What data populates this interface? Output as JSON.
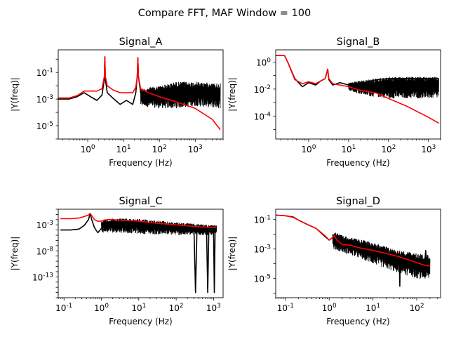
{
  "figure": {
    "suptitle": "Compare FFT, MAF Window = 100",
    "raw_color": "#000000",
    "filtered_color": "#ff0000"
  },
  "chart_data": [
    {
      "type": "line",
      "title": "Signal_A",
      "xlabel": "Frequency (Hz)",
      "ylabel": "|Y(freq)|",
      "xscale": "log",
      "yscale": "log",
      "xlim": [
        0.15,
        6000
      ],
      "ylim": [
        1e-06,
        5
      ],
      "x_ticks": [
        {
          "value": 1,
          "label": "10^0"
        },
        {
          "value": 10,
          "label": "10^1"
        },
        {
          "value": 100,
          "label": "10^2"
        },
        {
          "value": 1000,
          "label": "10^3"
        }
      ],
      "y_ticks": [
        {
          "value": 0.1,
          "label": "10^-1"
        },
        {
          "value": 0.001,
          "label": "10^-3"
        },
        {
          "value": 1e-05,
          "label": "10^-5"
        }
      ],
      "grid": false,
      "series": [
        {
          "role": "raw",
          "color": "#000000",
          "x": [
            0.15,
            0.3,
            0.5,
            0.8,
            1.2,
            1.8,
            2.5,
            2.9,
            3.0,
            3.1,
            3.5,
            5,
            8,
            12,
            18,
            22,
            24,
            25,
            26,
            30,
            50,
            100,
            300,
            1000,
            3000,
            5000
          ],
          "y": [
            0.001,
            0.001,
            0.0015,
            0.003,
            0.0015,
            0.0008,
            0.002,
            0.03,
            1.5,
            0.03,
            0.003,
            0.0012,
            0.0004,
            0.0008,
            0.0004,
            0.003,
            0.05,
            1.3,
            0.05,
            0.003,
            0.001,
            0.005,
            0.008,
            0.006,
            0.007,
            0.005
          ],
          "envelope_top": [
            0.15,
            0.001,
            30,
            0.006,
            100,
            0.01,
            300,
            0.02,
            1000,
            0.02,
            5000,
            0.015
          ],
          "envelope_bottom": [
            30,
            0.0003,
            100,
            0.0002,
            300,
            0.0002,
            1000,
            0.0003,
            5000,
            0.0002
          ]
        },
        {
          "role": "filtered",
          "color": "#ff0000",
          "x": [
            0.15,
            0.3,
            0.5,
            0.8,
            1.2,
            1.8,
            2.5,
            2.9,
            3.0,
            3.1,
            3.5,
            5,
            8,
            12,
            18,
            22,
            24,
            25,
            26,
            30,
            50,
            100,
            300,
            1000,
            3000,
            5000
          ],
          "y": [
            0.0012,
            0.0012,
            0.0018,
            0.004,
            0.004,
            0.004,
            0.006,
            0.05,
            1.4,
            0.05,
            0.01,
            0.005,
            0.003,
            0.003,
            0.003,
            0.008,
            0.05,
            1.3,
            0.05,
            0.006,
            0.003,
            0.0015,
            0.0006,
            0.0002,
            3e-05,
            5e-06
          ]
        }
      ]
    },
    {
      "type": "line",
      "title": "Signal_B",
      "xlabel": "Frequency (Hz)",
      "ylabel": "|Y(freq)|",
      "xscale": "log",
      "yscale": "log",
      "xlim": [
        0.15,
        2000
      ],
      "ylim": [
        2e-06,
        8
      ],
      "x_ticks": [
        {
          "value": 1,
          "label": "10^0"
        },
        {
          "value": 10,
          "label": "10^1"
        },
        {
          "value": 100,
          "label": "10^2"
        },
        {
          "value": 1000,
          "label": "10^3"
        }
      ],
      "y_ticks": [
        {
          "value": 1,
          "label": "10^0"
        },
        {
          "value": 0.01,
          "label": "10^-2"
        },
        {
          "value": 0.0001,
          "label": "10^-4"
        }
      ],
      "grid": false,
      "series": [
        {
          "role": "raw",
          "color": "#000000",
          "x": [
            0.15,
            0.25,
            0.3,
            0.45,
            0.7,
            1.0,
            1.5,
            2.0,
            2.6,
            3.0,
            3.2,
            4,
            6,
            10,
            20,
            50,
            100,
            300,
            1000,
            1800
          ],
          "y": [
            3,
            3,
            1,
            0.06,
            0.015,
            0.03,
            0.02,
            0.04,
            0.06,
            0.3,
            0.05,
            0.02,
            0.03,
            0.02,
            0.025,
            0.05,
            0.06,
            0.06,
            0.06,
            0.06
          ],
          "envelope_top": [
            0.15,
            3,
            10,
            0.03,
            30,
            0.05,
            100,
            0.08,
            300,
            0.08,
            1800,
            0.08
          ],
          "envelope_bottom": [
            10,
            0.008,
            30,
            0.003,
            100,
            0.002,
            300,
            0.002,
            1800,
            0.002
          ]
        },
        {
          "role": "filtered",
          "color": "#ff0000",
          "x": [
            0.15,
            0.25,
            0.3,
            0.45,
            0.7,
            1.0,
            1.5,
            2.0,
            2.6,
            3.0,
            3.2,
            4,
            6,
            10,
            20,
            50,
            100,
            300,
            1000,
            1800
          ],
          "y": [
            3,
            3,
            1,
            0.05,
            0.025,
            0.035,
            0.025,
            0.04,
            0.06,
            0.3,
            0.06,
            0.025,
            0.02,
            0.015,
            0.008,
            0.005,
            0.002,
            0.0005,
            8e-05,
            3e-05
          ]
        }
      ]
    },
    {
      "type": "line",
      "title": "Signal_C",
      "xlabel": "Frequency (Hz)",
      "ylabel": "|Y(freq)|",
      "xscale": "log",
      "yscale": "log",
      "xlim": [
        0.07,
        1800
      ],
      "ylim": [
        1e-17,
        1
      ],
      "x_ticks": [
        {
          "value": 0.1,
          "label": "10^-1"
        },
        {
          "value": 1,
          "label": "10^0"
        },
        {
          "value": 10,
          "label": "10^1"
        },
        {
          "value": 100,
          "label": "10^2"
        },
        {
          "value": 1000,
          "label": "10^3"
        }
      ],
      "y_ticks": [
        {
          "value": 0.001,
          "label": "10^-3"
        },
        {
          "value": 1e-08,
          "label": "10^-8"
        },
        {
          "value": 1e-13,
          "label": "10^-13"
        }
      ],
      "grid": false,
      "series": [
        {
          "role": "raw",
          "color": "#000000",
          "x": [
            0.08,
            0.15,
            0.25,
            0.35,
            0.45,
            0.5,
            0.55,
            0.65,
            0.8,
            1.0,
            1.2,
            1.5,
            2,
            3,
            5,
            10,
            30,
            100,
            300,
            330,
            360,
            390,
            500,
            650,
            700,
            750,
            800,
            1000,
            1050,
            1100,
            1200
          ],
          "y": [
            0.0001,
            0.0001,
            0.00015,
            0.0008,
            0.01,
            0.15,
            0.01,
            0.0003,
            3e-05,
            0.0002,
            0.0001,
            0.0003,
            0.0005,
            0.0008,
            0.001,
            0.002,
            0.001,
            0.0005,
            0.0002,
            1e-16,
            0.0002,
            0.0002,
            0.00015,
            0.00012,
            1e-16,
            0.00012,
            0.0001,
            0.0001,
            1e-16,
            0.0001,
            0.0001
          ],
          "envelope_top": [
            1,
            0.01,
            3,
            0.02,
            10,
            0.015,
            100,
            0.003,
            1200,
            0.0008
          ],
          "envelope_bottom": [
            1,
            3e-05,
            3,
            3e-05,
            10,
            2e-05,
            100,
            1e-05,
            1200,
            1e-05
          ]
        },
        {
          "role": "filtered",
          "color": "#ff0000",
          "x": [
            0.08,
            0.15,
            0.25,
            0.35,
            0.45,
            0.5,
            0.55,
            0.65,
            0.8,
            1.0,
            1.2,
            1.5,
            2,
            3,
            5,
            10,
            30,
            100,
            300,
            1000,
            1200
          ],
          "y": [
            0.015,
            0.015,
            0.02,
            0.04,
            0.08,
            0.15,
            0.06,
            0.01,
            0.005,
            0.005,
            0.008,
            0.01,
            0.01,
            0.008,
            0.007,
            0.005,
            0.002,
            0.001,
            0.0005,
            0.0003,
            0.0003
          ]
        }
      ]
    },
    {
      "type": "line",
      "title": "Signal_D",
      "xlabel": "Frequency (Hz)",
      "ylabel": "|Y(freq)|",
      "xscale": "log",
      "yscale": "log",
      "xlim": [
        0.06,
        350
      ],
      "ylim": [
        5e-07,
        0.5
      ],
      "x_ticks": [
        {
          "value": 0.1,
          "label": "10^-1"
        },
        {
          "value": 1,
          "label": "10^0"
        },
        {
          "value": 10,
          "label": "10^1"
        },
        {
          "value": 100,
          "label": "10^2"
        }
      ],
      "y_ticks": [
        {
          "value": 0.1,
          "label": "10^-1"
        },
        {
          "value": 0.001,
          "label": "10^-3"
        },
        {
          "value": 1e-05,
          "label": "10^-5"
        }
      ],
      "grid": false,
      "series": [
        {
          "role": "raw",
          "color": "#000000",
          "x": [
            0.06,
            0.1,
            0.15,
            0.2,
            0.3,
            0.5,
            0.8,
            1.0,
            1.2,
            1.3,
            1.5,
            2,
            3,
            5,
            10,
            20,
            40,
            41,
            42,
            60,
            100,
            150,
            160,
            170,
            200
          ],
          "y": [
            0.2,
            0.18,
            0.15,
            0.09,
            0.05,
            0.025,
            0.007,
            0.004,
            0.006,
            0.01,
            0.004,
            0.002,
            0.003,
            0.0015,
            0.001,
            0.0003,
            0.0003,
            3e-06,
            0.0003,
            0.0002,
            0.0001,
            7e-05,
            0.0008,
            7e-05,
            6e-05
          ],
          "envelope_top": [
            1.2,
            0.015,
            3,
            0.006,
            10,
            0.003,
            30,
            0.001,
            100,
            0.0005,
            200,
            0.0004
          ],
          "envelope_bottom": [
            1.2,
            0.001,
            3,
            0.0004,
            10,
            0.0001,
            30,
            3e-05,
            100,
            1e-05,
            200,
            8e-06
          ]
        },
        {
          "role": "filtered",
          "color": "#ff0000",
          "x": [
            0.06,
            0.1,
            0.15,
            0.2,
            0.3,
            0.5,
            0.8,
            1.0,
            1.2,
            1.3,
            1.5,
            2,
            3,
            5,
            10,
            20,
            40,
            60,
            100,
            150,
            200
          ],
          "y": [
            0.2,
            0.18,
            0.14,
            0.09,
            0.05,
            0.025,
            0.008,
            0.004,
            0.006,
            0.008,
            0.004,
            0.002,
            0.0018,
            0.0012,
            0.0008,
            0.0005,
            0.0003,
            0.0002,
            0.00012,
            8e-05,
            7e-05
          ]
        }
      ]
    }
  ]
}
